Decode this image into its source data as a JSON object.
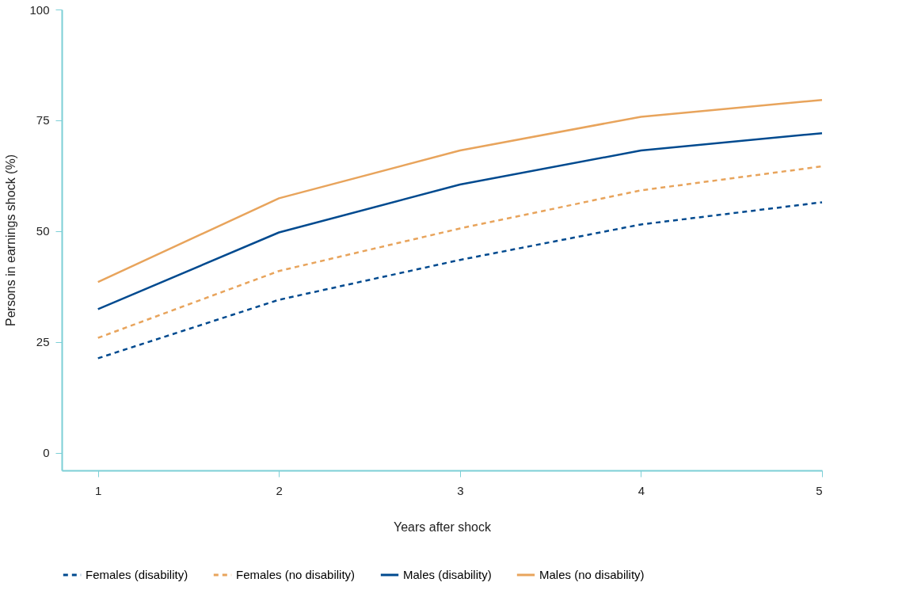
{
  "chart_data": {
    "type": "line",
    "xlabel": "Years after shock",
    "ylabel": "Persons in earnings shock (%)",
    "x": [
      1,
      2,
      3,
      4,
      5
    ],
    "xlim": [
      0.8,
      5
    ],
    "xticks": [
      1,
      2,
      3,
      4,
      5
    ],
    "ylim": [
      -4,
      100
    ],
    "yticks": [
      0,
      25,
      50,
      75,
      100
    ],
    "grid": false,
    "legend": "bottom",
    "marker": "none",
    "series": [
      {
        "name": "Females (disability)",
        "color": "#004a8f",
        "line_style": "dashed",
        "values": [
          21.3,
          34.5,
          43.5,
          51.5,
          56.5
        ]
      },
      {
        "name": "Females (no disability)",
        "color": "#e8a45c",
        "line_style": "dashed",
        "values": [
          25.9,
          41.0,
          50.6,
          59.2,
          64.6
        ]
      },
      {
        "name": "Males (disability)",
        "color": "#004a8f",
        "line_style": "solid",
        "values": [
          32.4,
          49.7,
          60.5,
          68.2,
          72.1
        ]
      },
      {
        "name": "Males (no disability)",
        "color": "#e8a45c",
        "line_style": "solid",
        "values": [
          38.5,
          57.4,
          68.2,
          75.8,
          79.6
        ]
      }
    ]
  }
}
